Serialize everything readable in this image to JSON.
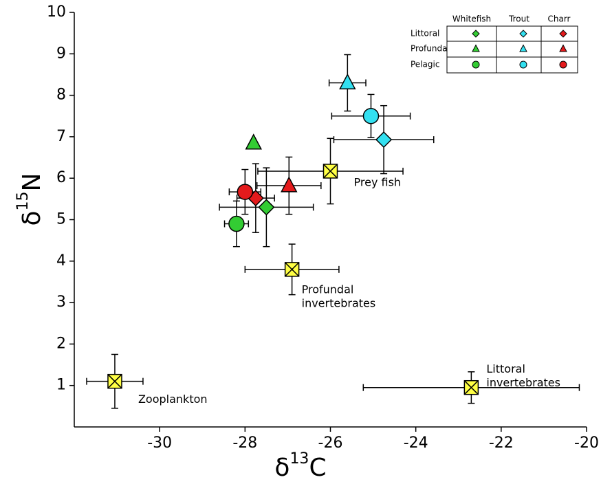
{
  "chart_data": {
    "type": "scatter",
    "xlabel": [
      "δ",
      "13",
      "C"
    ],
    "ylabel": [
      "δ",
      "15",
      "N"
    ],
    "xlim": [
      -32,
      -20
    ],
    "ylim": [
      0,
      10
    ],
    "xticks": [
      -30,
      -28,
      -26,
      -24,
      -22,
      -20
    ],
    "yticks": [
      1,
      2,
      3,
      4,
      5,
      6,
      7,
      8,
      9,
      10
    ],
    "habitats": [
      "Littoral",
      "Profunda",
      "Pelagic"
    ],
    "markers": [
      "diamond",
      "triangle",
      "circle"
    ],
    "series": [
      {
        "name": "Whitefish",
        "color": "#33cc33",
        "x": [
          -27.5,
          -27.8,
          -28.2
        ],
        "values": [
          5.3,
          6.85,
          4.9
        ],
        "xerr": [
          1.1,
          null,
          0.28
        ],
        "yerr": [
          0.95,
          null,
          0.55
        ]
      },
      {
        "name": "Trout",
        "color": "#33e0f0",
        "x": [
          -24.75,
          -25.6,
          -25.05
        ],
        "values": [
          6.93,
          8.3,
          7.5
        ],
        "xerr": [
          1.17,
          0.43,
          0.92
        ],
        "yerr": [
          0.82,
          0.68,
          0.52
        ]
      },
      {
        "name": "Charr",
        "color": "#e41a1c",
        "x": [
          -27.75,
          -26.97,
          -28.0
        ],
        "values": [
          5.52,
          5.82,
          5.67
        ],
        "xerr": [
          0.44,
          0.75,
          0.37
        ],
        "yerr": [
          0.83,
          0.69,
          0.54
        ]
      }
    ],
    "references": {
      "color": "#ffff44",
      "labels": [
        [
          "Prey fish"
        ],
        [
          "Profundal",
          "invertebrates"
        ],
        [
          "Zooplankton"
        ],
        [
          "Littoral",
          "invertebrates"
        ]
      ],
      "x": [
        -26.0,
        -26.9,
        -31.05,
        -22.7
      ],
      "values": [
        6.17,
        3.8,
        1.1,
        0.95
      ],
      "xerr": [
        1.7,
        1.1,
        0.66,
        2.53
      ],
      "yerr": [
        0.79,
        0.61,
        0.65,
        0.38
      ]
    }
  }
}
